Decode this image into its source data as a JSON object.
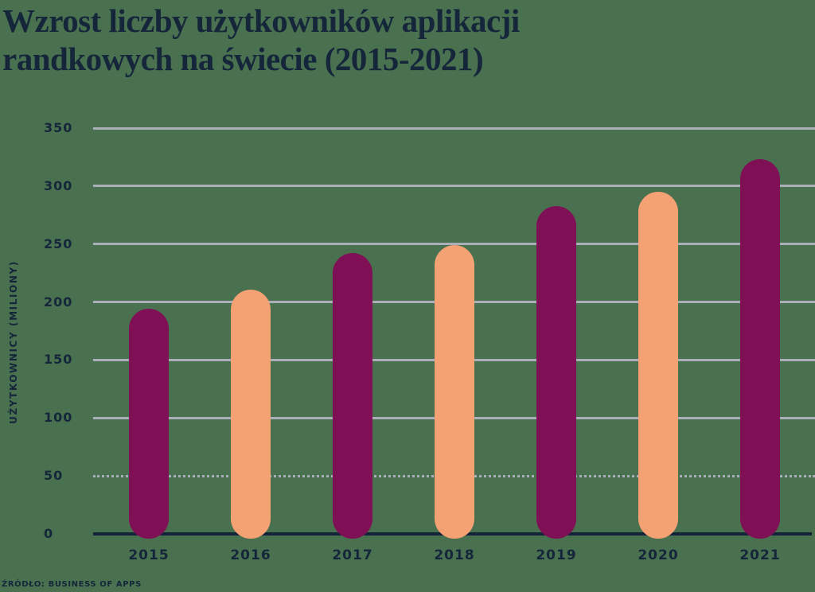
{
  "page": {
    "title_line1": "Wzrost liczby użytkowników aplikacji",
    "title_line2": "randkowych na świecie (2015-2021)",
    "source": "ŹRÓDŁO: BUSINESS OF APPS"
  },
  "colors": {
    "background": "#497150",
    "text_navy": "#15263A",
    "gridline": "#A9AEB8",
    "axis_line": "#13233A",
    "bar_magenta": "#7F1055",
    "bar_peach": "#F4A173"
  },
  "chart_data": {
    "type": "bar",
    "title": "Wzrost liczby użytkowników aplikacji randkowych na świecie (2015-2021)",
    "xlabel": "",
    "ylabel": "UŻYTKOWNICY (MILIONY)",
    "categories": [
      "2015",
      "2016",
      "2017",
      "2018",
      "2019",
      "2020",
      "2021"
    ],
    "values": [
      194,
      211,
      242,
      249,
      283,
      295,
      323
    ],
    "unit": "miliony użytkowników",
    "ylim": [
      0,
      350
    ],
    "yticks": [
      350,
      300,
      250,
      200,
      150,
      100,
      50,
      0
    ],
    "grid": "horizontal",
    "dotted_gridline_at": 50,
    "bar_color_pattern": [
      "#7F1055",
      "#F4A173"
    ],
    "bar_shape": "pill-rounded-ends",
    "legend": "none",
    "source": "ŹRÓDŁO: BUSINESS OF APPS"
  }
}
